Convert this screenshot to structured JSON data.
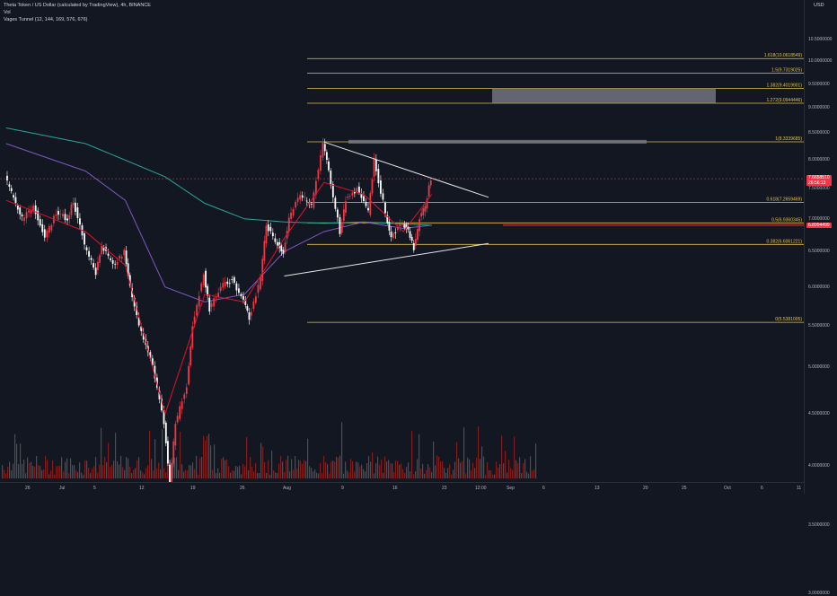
{
  "header": {
    "title": "Theta Token / US Dollar (calculated by TradingView), 4h, BINANCE",
    "vol": "Vol",
    "indicator": "Vages Tunnel (12, 144, 169, 576, 676)"
  },
  "price_axis": {
    "currency": "USD",
    "ticks": [
      "10.5000000",
      "10.0000000",
      "9.5000000",
      "9.0000000",
      "8.5000000",
      "8.0000000",
      "7.5000000",
      "7.0000000",
      "6.5000000",
      "6.0000000",
      "5.5000000",
      "5.0000000",
      "4.5000000",
      "4.0000000",
      "3.5000000",
      "3.0000000"
    ],
    "current_price": "7.6658510",
    "countdown": "26:56:13",
    "tunnel_price": "6.8994499"
  },
  "time_axis": {
    "ticks": [
      "26",
      "Jul",
      "5",
      "12",
      "19",
      "26",
      "Aug",
      "9",
      "16",
      "23",
      "12:00",
      "Sep",
      "6",
      "13",
      "20",
      "25",
      "Oct",
      "6",
      "11"
    ]
  },
  "colors": {
    "background": "#131722",
    "up": "#f23645",
    "down": "#ffffff",
    "fib_line": "#e0c244",
    "tunnel_green": "#26a69a",
    "tunnel_purple": "#7e57c2",
    "ema_red": "#e0112b",
    "trendline": "#e6e6e6",
    "zone": "#787b86",
    "volume": "#7f1d1d"
  },
  "chart_data": {
    "type": "candlestick",
    "symbol": "THETAUSD",
    "interval": "4h",
    "exchange": "BINANCE",
    "y_scale": "log",
    "ylim": [
      3.0,
      10.7
    ],
    "fib_levels": [
      {
        "ratio": "1.618",
        "price": "10.0618549",
        "label": "1.618(10.0618549)"
      },
      {
        "ratio": "1.5",
        "price": "9.7319025",
        "label": "1.5(9.7319025)"
      },
      {
        "ratio": "1.382",
        "price": "9.4019901",
        "label": "1.382(9.4019901)"
      },
      {
        "ratio": "1.272",
        "price": "9.0944446",
        "label": "1.272(9.0944446)"
      },
      {
        "ratio": "1",
        "price": "8.3339685",
        "label": "1(8.3339685)"
      },
      {
        "ratio": "0.618",
        "price": "7.2659469",
        "label": "0.618(7.2659469)"
      },
      {
        "ratio": "0.5",
        "price": "6.9360345",
        "label": "0.5(6.9360345)"
      },
      {
        "ratio": "0.382",
        "price": "6.6061221",
        "label": "0.382(6.6061221)"
      },
      {
        "ratio": "0",
        "price": "5.5381005",
        "label": "0(5.5381005)"
      }
    ],
    "zones": [
      {
        "name": "upper-resistance-zone",
        "price_low": 9.1,
        "price_high": 9.4
      },
      {
        "name": "previous-high-zone",
        "price_low": 8.3,
        "price_high": 8.37
      }
    ],
    "price_path": [
      {
        "date": "2021-06-21",
        "price": 7.7
      },
      {
        "date": "2021-06-24",
        "price": 7.0
      },
      {
        "date": "2021-06-26",
        "price": 7.2
      },
      {
        "date": "2021-06-28",
        "price": 6.7
      },
      {
        "date": "2021-06-30",
        "price": 7.1
      },
      {
        "date": "2021-07-02",
        "price": 7.0
      },
      {
        "date": "2021-07-03",
        "price": 7.3
      },
      {
        "date": "2021-07-05",
        "price": 6.6
      },
      {
        "date": "2021-07-07",
        "price": 6.2
      },
      {
        "date": "2021-07-08",
        "price": 6.6
      },
      {
        "date": "2021-07-10",
        "price": 6.3
      },
      {
        "date": "2021-07-12",
        "price": 6.5
      },
      {
        "date": "2021-07-13",
        "price": 6.0
      },
      {
        "date": "2021-07-15",
        "price": 5.4
      },
      {
        "date": "2021-07-17",
        "price": 5.0
      },
      {
        "date": "2021-07-19",
        "price": 4.4
      },
      {
        "date": "2021-07-20",
        "price": 3.85
      },
      {
        "date": "2021-07-21",
        "price": 4.4
      },
      {
        "date": "2021-07-23",
        "price": 4.8
      },
      {
        "date": "2021-07-24",
        "price": 5.5
      },
      {
        "date": "2021-07-26",
        "price": 6.2
      },
      {
        "date": "2021-07-27",
        "price": 5.7
      },
      {
        "date": "2021-07-29",
        "price": 6.0
      },
      {
        "date": "2021-07-31",
        "price": 6.1
      },
      {
        "date": "2021-08-02",
        "price": 5.8
      },
      {
        "date": "2021-08-03",
        "price": 5.6
      },
      {
        "date": "2021-08-05",
        "price": 6.1
      },
      {
        "date": "2021-08-06",
        "price": 6.9
      },
      {
        "date": "2021-08-08",
        "price": 6.6
      },
      {
        "date": "2021-08-09",
        "price": 6.5
      },
      {
        "date": "2021-08-10",
        "price": 7.0
      },
      {
        "date": "2021-08-12",
        "price": 7.4
      },
      {
        "date": "2021-08-14",
        "price": 7.2
      },
      {
        "date": "2021-08-16",
        "price": 8.3
      },
      {
        "date": "2021-08-17",
        "price": 7.8
      },
      {
        "date": "2021-08-19",
        "price": 6.8
      },
      {
        "date": "2021-08-20",
        "price": 7.3
      },
      {
        "date": "2021-08-22",
        "price": 7.5
      },
      {
        "date": "2021-08-24",
        "price": 7.1
      },
      {
        "date": "2021-08-25",
        "price": 8.0
      },
      {
        "date": "2021-08-27",
        "price": 7.1
      },
      {
        "date": "2021-08-28",
        "price": 6.7
      },
      {
        "date": "2021-08-30",
        "price": 6.95
      },
      {
        "date": "2021-08-31",
        "price": 6.8
      },
      {
        "date": "2021-09-01",
        "price": 6.55
      },
      {
        "date": "2021-09-02",
        "price": 7.0
      },
      {
        "date": "2021-09-03",
        "price": 7.2
      },
      {
        "date": "2021-09-04",
        "price": 7.67
      }
    ],
    "ema_fast": [
      {
        "date": "2021-06-21",
        "price": 7.3
      },
      {
        "date": "2021-07-05",
        "price": 6.8
      },
      {
        "date": "2021-07-12",
        "price": 6.3
      },
      {
        "date": "2021-07-19",
        "price": 4.5
      },
      {
        "date": "2021-07-26",
        "price": 5.9
      },
      {
        "date": "2021-08-02",
        "price": 5.8
      },
      {
        "date": "2021-08-09",
        "price": 6.7
      },
      {
        "date": "2021-08-16",
        "price": 7.6
      },
      {
        "date": "2021-08-23",
        "price": 7.4
      },
      {
        "date": "2021-08-30",
        "price": 6.8
      },
      {
        "date": "2021-09-04",
        "price": 7.4
      }
    ],
    "tunnel_green": [
      {
        "date": "2021-06-21",
        "price": 8.6
      },
      {
        "date": "2021-07-05",
        "price": 8.3
      },
      {
        "date": "2021-07-19",
        "price": 7.7
      },
      {
        "date": "2021-07-26",
        "price": 7.25
      },
      {
        "date": "2021-08-02",
        "price": 7.0
      },
      {
        "date": "2021-08-09",
        "price": 6.95
      },
      {
        "date": "2021-08-16",
        "price": 6.93
      },
      {
        "date": "2021-08-23",
        "price": 6.95
      },
      {
        "date": "2021-08-30",
        "price": 6.92
      },
      {
        "date": "2021-09-04",
        "price": 6.9
      }
    ],
    "tunnel_purple": [
      {
        "date": "2021-06-21",
        "price": 8.3
      },
      {
        "date": "2021-07-05",
        "price": 7.8
      },
      {
        "date": "2021-07-12",
        "price": 7.3
      },
      {
        "date": "2021-07-19",
        "price": 6.0
      },
      {
        "date": "2021-07-26",
        "price": 5.8
      },
      {
        "date": "2021-08-02",
        "price": 5.9
      },
      {
        "date": "2021-08-09",
        "price": 6.5
      },
      {
        "date": "2021-08-16",
        "price": 6.8
      },
      {
        "date": "2021-08-23",
        "price": 6.95
      },
      {
        "date": "2021-08-30",
        "price": 6.85
      },
      {
        "date": "2021-09-04",
        "price": 6.9
      }
    ],
    "trendlines": [
      {
        "name": "descending-resistance",
        "from": {
          "date": "2021-08-16",
          "price": 8.33
        },
        "to": {
          "date": "2021-09-14",
          "price": 7.35
        }
      },
      {
        "name": "ascending-support",
        "from": {
          "date": "2021-08-09",
          "price": 6.15
        },
        "to": {
          "date": "2021-09-14",
          "price": 6.62
        }
      }
    ]
  }
}
